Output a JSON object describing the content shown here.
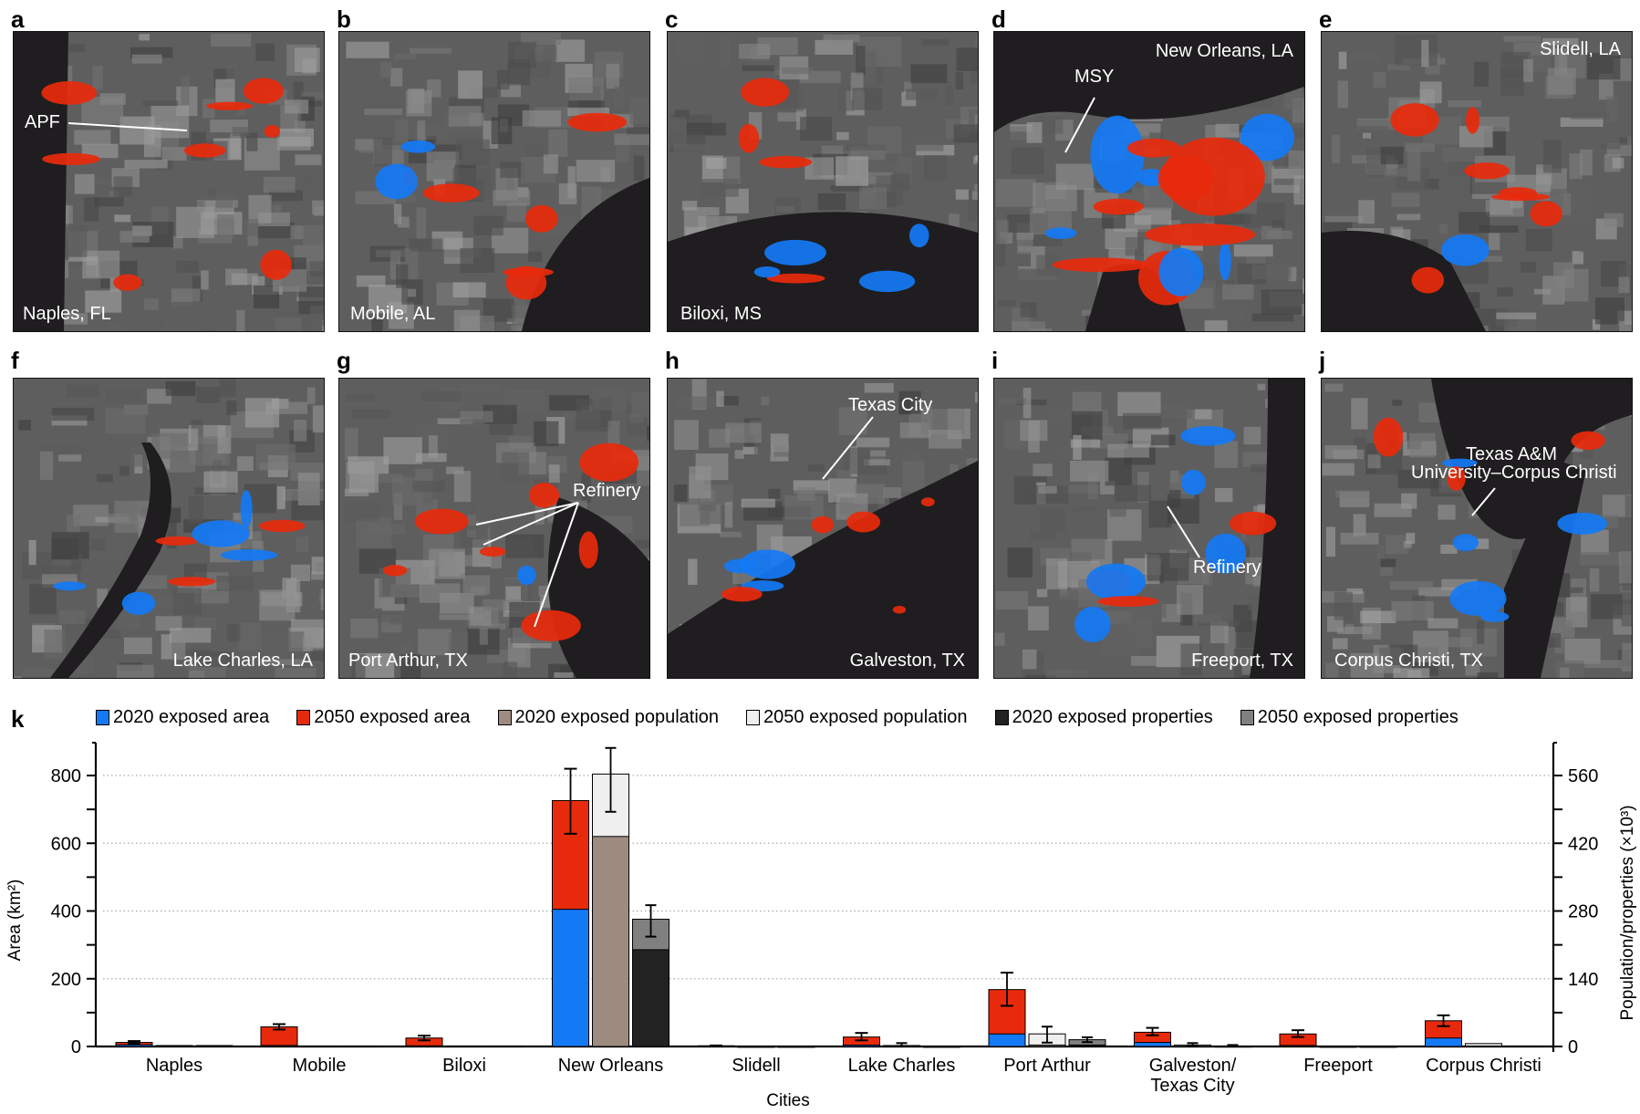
{
  "panels": [
    {
      "letter": "a",
      "city_label": "Naples, FL",
      "annotations": [
        "APF"
      ]
    },
    {
      "letter": "b",
      "city_label": "Mobile, AL",
      "annotations": []
    },
    {
      "letter": "c",
      "city_label": "Biloxi, MS",
      "annotations": []
    },
    {
      "letter": "d",
      "city_label": "New Orleans, LA",
      "annotations": [
        "MSY"
      ]
    },
    {
      "letter": "e",
      "city_label": "Slidell, LA",
      "annotations": []
    },
    {
      "letter": "f",
      "city_label": "Lake Charles, LA",
      "annotations": []
    },
    {
      "letter": "g",
      "city_label": "Port Arthur, TX",
      "annotations": [
        "Refinery"
      ]
    },
    {
      "letter": "h",
      "city_label": "Galveston, TX",
      "annotations": [
        "Texas City"
      ]
    },
    {
      "letter": "i",
      "city_label": "Freeport, TX",
      "annotations": [
        "Refinery"
      ]
    },
    {
      "letter": "j",
      "city_label": "Corpus Christi, TX",
      "annotations": [
        "Texas A&M",
        "University–Corpus Christi"
      ]
    }
  ],
  "colors": {
    "area_2020": "#1479f5",
    "area_2050": "#e82a0c",
    "pop_2020": "#9e8b80",
    "pop_2050": "#efefef",
    "prop_2020": "#222222",
    "prop_2050": "#808080"
  },
  "chart_data": {
    "type": "bar",
    "panel_letter": "k",
    "title": "",
    "xlabel": "Cities",
    "ylabel": "Area (km²)",
    "ylabel_right": "Population/properties (×10³)",
    "ylim": [
      0,
      900
    ],
    "ylim_right": [
      0,
      630
    ],
    "yticks": [
      0,
      200,
      400,
      600,
      800
    ],
    "yticks_right": [
      0,
      140,
      280,
      420,
      560
    ],
    "grid": "horizontal dotted",
    "legend_position": "top",
    "legend": [
      "2020 exposed area",
      "2050 exposed area",
      "2020 exposed population",
      "2050 exposed population",
      "2020 exposed properties",
      "2050 exposed properties"
    ],
    "categories": [
      "Naples",
      "Mobile",
      "Biloxi",
      "New Orleans",
      "Slidell",
      "Lake Charles",
      "Port Arthur",
      "Galveston/\nTexas City",
      "Freeport",
      "Corpus Christi"
    ],
    "series": [
      {
        "name": "2020 exposed area",
        "axis": "left",
        "unit": "km2",
        "values": [
          5,
          3,
          2,
          405,
          1,
          4,
          37,
          12,
          3,
          25
        ]
      },
      {
        "name": "2050 exposed area",
        "axis": "left",
        "unit": "km2",
        "values": [
          12,
          58,
          25,
          726,
          2,
          28,
          168,
          42,
          37,
          76
        ],
        "error": [
          [
            8,
            16
          ],
          [
            50,
            66
          ],
          [
            18,
            32
          ],
          [
            628,
            820
          ],
          [
            1,
            3
          ],
          [
            18,
            40
          ],
          [
            120,
            218
          ],
          [
            33,
            55
          ],
          [
            28,
            48
          ],
          [
            60,
            92
          ]
        ]
      },
      {
        "name": "2020 exposed population",
        "axis": "right",
        "unit": "thousands",
        "values": [
          1,
          0.5,
          0.5,
          434,
          0,
          0.5,
          3,
          0.5,
          0,
          1
        ]
      },
      {
        "name": "2050 exposed population",
        "axis": "right",
        "unit": "thousands",
        "values": [
          2,
          1,
          1,
          563,
          0,
          2,
          26,
          3,
          0,
          6
        ],
        "error": [
          null,
          null,
          null,
          [
            485,
            617
          ],
          null,
          [
            1,
            7
          ],
          [
            8,
            41
          ],
          [
            1,
            7
          ],
          null,
          null
        ]
      },
      {
        "name": "2020 exposed properties",
        "axis": "right",
        "unit": "thousands",
        "values": [
          1,
          0.5,
          0.5,
          200,
          0,
          0,
          3,
          0.2,
          0,
          0.5
        ]
      },
      {
        "name": "2050 exposed properties",
        "axis": "right",
        "unit": "thousands",
        "values": [
          2,
          1,
          1,
          263,
          0,
          0,
          14,
          1,
          0,
          1
        ],
        "error": [
          null,
          null,
          null,
          [
            227,
            292
          ],
          null,
          null,
          [
            9,
            19
          ],
          [
            0,
            3
          ],
          null,
          null
        ]
      }
    ]
  }
}
